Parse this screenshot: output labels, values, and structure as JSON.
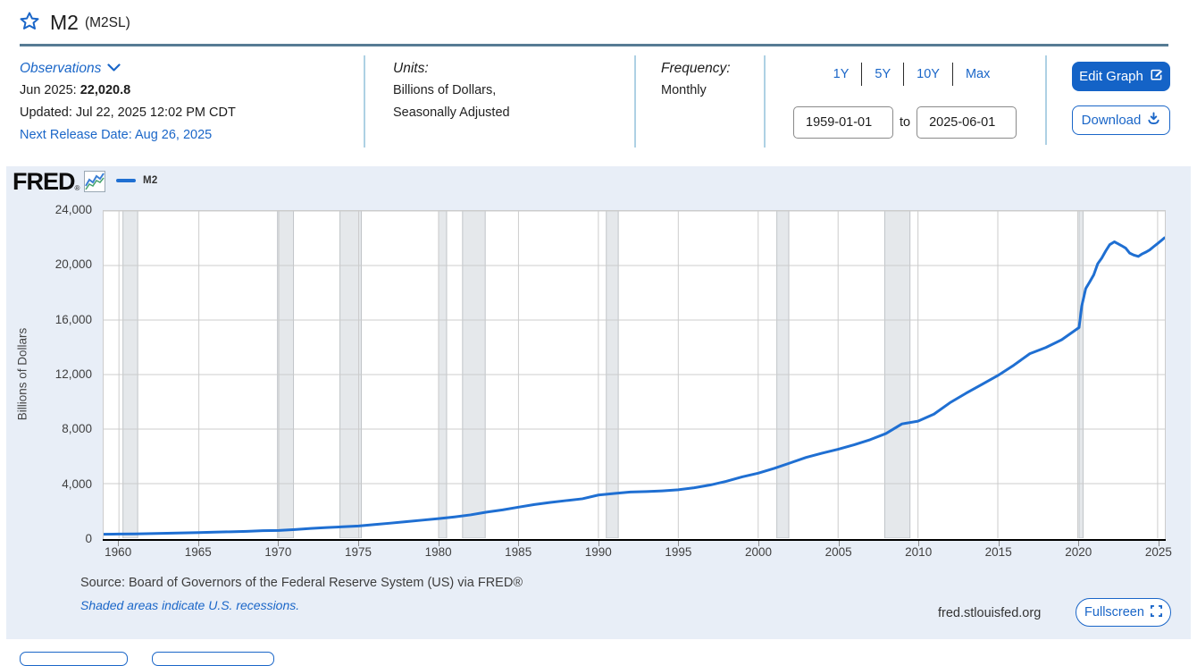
{
  "page": {
    "title": "M2",
    "series_id": "(M2SL)"
  },
  "observations": {
    "label": "Observations",
    "latest_period": "Jun 2025:",
    "latest_value": "22,020.8",
    "updated": "Updated: Jul 22, 2025 12:02 PM CDT",
    "next_release": "Next Release Date: Aug 26, 2025"
  },
  "units": {
    "label": "Units:",
    "line1": "Billions of Dollars,",
    "line2": "Seasonally Adjusted"
  },
  "frequency": {
    "label": "Frequency:",
    "value": "Monthly"
  },
  "range_selector": {
    "options": [
      "1Y",
      "5Y",
      "10Y",
      "Max"
    ],
    "start_date": "1959-01-01",
    "to_label": "to",
    "end_date": "2025-06-01"
  },
  "actions": {
    "edit_graph": "Edit Graph",
    "download": "Download",
    "fullscreen": "Fullscreen"
  },
  "branding": {
    "logo": "FRED",
    "logo_mark": "®",
    "site": "fred.stlouisfed.org"
  },
  "legend": {
    "series_label": "M2"
  },
  "footer": {
    "source": "Source: Board of Governors of the Federal Reserve System (US) via FRED®",
    "recession_note": "Shaded areas indicate U.S. recessions."
  },
  "colors": {
    "accent_blue": "#1a66c8",
    "button_fill": "#1463c7",
    "line_blue": "#1f6fd2",
    "panel_bg": "#e8eef7",
    "title_rule": "#567b94",
    "header_divider": "#aed1e4",
    "gridline": "#cccccc",
    "recession_fill": "#e5e8eb",
    "recession_edge": "#c0c4c8"
  },
  "chart_data": {
    "type": "line",
    "title": "M2",
    "ylabel": "Billions of Dollars",
    "xlabel": "",
    "ylim": [
      0,
      24000
    ],
    "xlim": [
      1959.04,
      2025.45
    ],
    "yticks": [
      0,
      4000,
      8000,
      12000,
      16000,
      20000,
      24000
    ],
    "xticks": [
      1960,
      1965,
      1970,
      1975,
      1980,
      1985,
      1990,
      1995,
      2000,
      2005,
      2010,
      2015,
      2020,
      2025
    ],
    "grid": true,
    "legend_position": "top-left",
    "recessions": [
      [
        1960.25,
        1961.17
      ],
      [
        1969.92,
        1970.92
      ],
      [
        1973.83,
        1975.17
      ],
      [
        1980.0,
        1980.5
      ],
      [
        1981.5,
        1982.92
      ],
      [
        1990.5,
        1991.25
      ],
      [
        2001.17,
        2001.92
      ],
      [
        2007.92,
        2009.5
      ],
      [
        2020.08,
        2020.33
      ]
    ],
    "series": [
      {
        "name": "M2",
        "color": "#1f6fd2",
        "points": [
          [
            1959.04,
            287
          ],
          [
            1960,
            298
          ],
          [
            1961,
            312
          ],
          [
            1962,
            335
          ],
          [
            1963,
            357
          ],
          [
            1964,
            382
          ],
          [
            1965,
            413
          ],
          [
            1966,
            442
          ],
          [
            1967,
            467
          ],
          [
            1968,
            503
          ],
          [
            1969,
            545
          ],
          [
            1970,
            570
          ],
          [
            1971,
            634
          ],
          [
            1972,
            710
          ],
          [
            1973,
            779
          ],
          [
            1974,
            832
          ],
          [
            1975,
            894
          ],
          [
            1976,
            1001
          ],
          [
            1977,
            1104
          ],
          [
            1978,
            1211
          ],
          [
            1979,
            1322
          ],
          [
            1980,
            1432
          ],
          [
            1981,
            1561
          ],
          [
            1982,
            1711
          ],
          [
            1983,
            1910
          ],
          [
            1984,
            2071
          ],
          [
            1985,
            2274
          ],
          [
            1986,
            2463
          ],
          [
            1987,
            2622
          ],
          [
            1988,
            2758
          ],
          [
            1989,
            2887
          ],
          [
            1990,
            3165
          ],
          [
            1991,
            3283
          ],
          [
            1992,
            3387
          ],
          [
            1993,
            3420
          ],
          [
            1994,
            3470
          ],
          [
            1995,
            3549
          ],
          [
            1996,
            3695
          ],
          [
            1997,
            3903
          ],
          [
            1998,
            4167
          ],
          [
            1999,
            4494
          ],
          [
            2000,
            4769
          ],
          [
            2001,
            5117
          ],
          [
            2002,
            5517
          ],
          [
            2003,
            5924
          ],
          [
            2004,
            6232
          ],
          [
            2005,
            6520
          ],
          [
            2006,
            6848
          ],
          [
            2007,
            7217
          ],
          [
            2008,
            7679
          ],
          [
            2009,
            8382
          ],
          [
            2010,
            8580
          ],
          [
            2011,
            9097
          ],
          [
            2012,
            9934
          ],
          [
            2013,
            10625
          ],
          [
            2014,
            11274
          ],
          [
            2015,
            11929
          ],
          [
            2016,
            12689
          ],
          [
            2017,
            13530
          ],
          [
            2018,
            13984
          ],
          [
            2019,
            14557
          ],
          [
            2020.08,
            15447
          ],
          [
            2020.25,
            17023
          ],
          [
            2020.5,
            18312
          ],
          [
            2020.75,
            18800
          ],
          [
            2021.0,
            19319
          ],
          [
            2021.25,
            20125
          ],
          [
            2021.5,
            20546
          ],
          [
            2021.75,
            21068
          ],
          [
            2022.0,
            21525
          ],
          [
            2022.29,
            21740
          ],
          [
            2022.5,
            21616
          ],
          [
            2022.75,
            21449
          ],
          [
            2023.0,
            21272
          ],
          [
            2023.25,
            20908
          ],
          [
            2023.5,
            20766
          ],
          [
            2023.79,
            20668
          ],
          [
            2024.0,
            20829
          ],
          [
            2024.25,
            20971
          ],
          [
            2024.5,
            21141
          ],
          [
            2024.75,
            21382
          ],
          [
            2025.0,
            21612
          ],
          [
            2025.25,
            21852
          ],
          [
            2025.42,
            22020.8
          ]
        ]
      }
    ]
  }
}
